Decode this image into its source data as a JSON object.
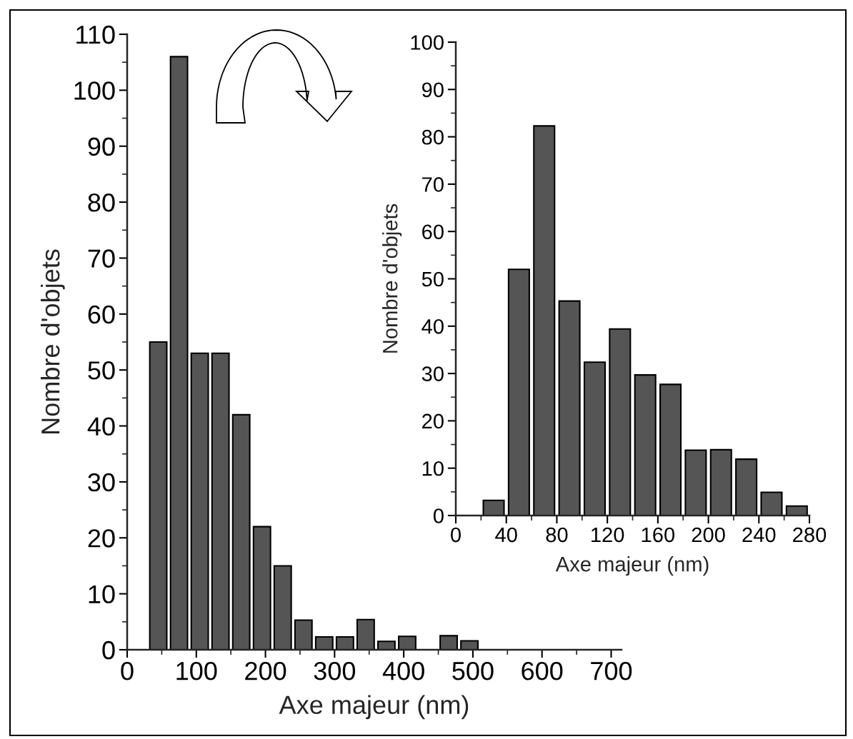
{
  "chart_data": [
    {
      "type": "histogram",
      "xlabel": "Axe majeur (nm)",
      "ylabel": "Nombre d'objets",
      "color": "#555555",
      "bins": [
        30,
        60,
        90,
        120,
        150,
        180,
        210,
        240,
        270,
        300,
        330,
        360,
        390,
        420,
        450,
        480,
        510
      ],
      "values": [
        55,
        106,
        53,
        53,
        42,
        22,
        15,
        5.3,
        2.3,
        2.3,
        5.4,
        1.5,
        2.4,
        0,
        2.5,
        1.6
      ],
      "xlim": [
        0,
        715
      ],
      "ylim": [
        0,
        110
      ],
      "xticks": [
        0,
        100,
        200,
        300,
        400,
        500,
        600,
        700
      ],
      "yticks": [
        0,
        10,
        20,
        30,
        40,
        50,
        60,
        70,
        80,
        90,
        100,
        110
      ]
    },
    {
      "type": "histogram",
      "xlabel": "Axe majeur (nm)",
      "ylabel": "Nombre d'objets",
      "color": "#555555",
      "bins": [
        20,
        40,
        60,
        80,
        100,
        120,
        140,
        160,
        180,
        200,
        220,
        240,
        260,
        280
      ],
      "values": [
        3.2,
        52,
        82.3,
        45.3,
        32.4,
        39.4,
        29.7,
        27.7,
        13.8,
        13.9,
        11.9,
        4.9,
        2
      ],
      "xlim": [
        0,
        280
      ],
      "ylim": [
        0,
        100
      ],
      "xticks": [
        0,
        40,
        80,
        120,
        160,
        200,
        240,
        280
      ],
      "yticks": [
        0,
        10,
        20,
        30,
        40,
        50,
        60,
        70,
        80,
        90,
        100
      ]
    }
  ]
}
